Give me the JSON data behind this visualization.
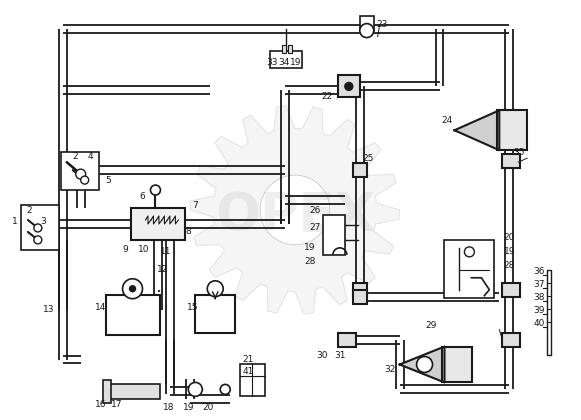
{
  "bg_color": "#ffffff",
  "lc": "#1a1a1a",
  "fig_width": 5.81,
  "fig_height": 4.2,
  "dpi": 100,
  "watermark": "OPEX",
  "wm_color": "#c8c8c8",
  "wm_alpha": 0.3
}
